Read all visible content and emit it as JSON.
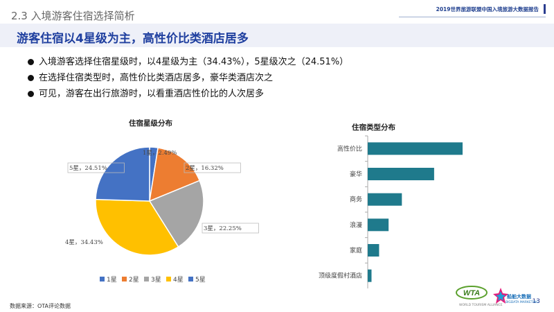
{
  "header": {
    "section_title": "2.3 入境游客住宿选择简析",
    "report_title": "2019世界旅游联盟中国入境旅游大数据报告"
  },
  "headline": "游客住宿以4星级为主，高性价比类酒店居多",
  "bullets": [
    "入境游客选择住宿星级时，以4星级为主（34.43%），5星级次之（24.51%）",
    "在选择住宿类型时，高性价比类酒店居多，豪华类酒店次之",
    "可见，游客在出行旅游时，以看重酒店性价比的人次居多"
  ],
  "chart_data": [
    {
      "type": "pie",
      "title": "住宿星级分布",
      "categories": [
        "1星",
        "2星",
        "3星",
        "4星",
        "5星"
      ],
      "values": [
        2.49,
        16.32,
        22.25,
        34.43,
        24.51
      ],
      "labels": [
        "1星，2.49%",
        "2星，16.32%",
        "3星，22.25%",
        "4星，34.43%",
        "5星，24.51%"
      ],
      "colors": [
        "#4472c4",
        "#ed7d31",
        "#a5a5a5",
        "#ffc000",
        "#4472c4"
      ],
      "legend": "bottom"
    },
    {
      "type": "bar",
      "orientation": "horizontal",
      "title": "住宿类型分布",
      "categories": [
        "高性价比",
        "豪华",
        "商务",
        "浪漫",
        "家庭",
        "顶级度假村酒店"
      ],
      "values": [
        100,
        70,
        36,
        22,
        12,
        4
      ],
      "color": "#1f7a8c",
      "value_axis_labels": false
    }
  ],
  "footer": {
    "source": "数据来源：OTA评论数据",
    "page_number": "13"
  },
  "logos": {
    "wta_mark": "WTA",
    "wta_sub": "WORLD TOURISM ALLIANCE",
    "brand_name": "船舶大数据",
    "brand_sub": "BIGDATA MARKETING"
  }
}
